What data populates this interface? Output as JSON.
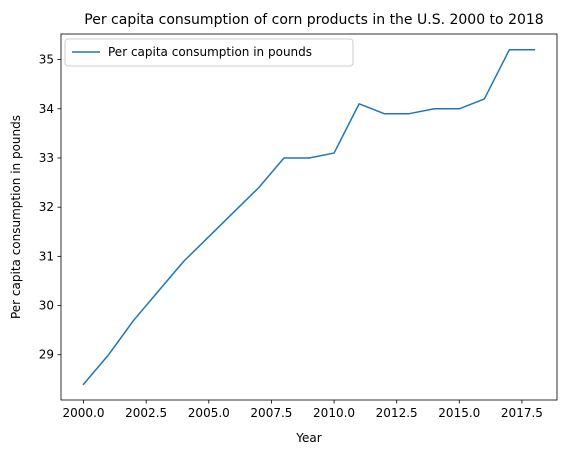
{
  "chart_data": {
    "type": "line",
    "title": "Per capita consumption of corn products in the U.S. 2000 to 2018",
    "xlabel": "Year",
    "ylabel": "Per capita consumption in pounds",
    "xlim": [
      1999.1,
      2018.9
    ],
    "ylim": [
      28.08,
      35.52
    ],
    "xticks": [
      2000.0,
      2002.5,
      2005.0,
      2007.5,
      2010.0,
      2012.5,
      2015.0,
      2017.5
    ],
    "xtick_labels": [
      "2000.0",
      "2002.5",
      "2005.0",
      "2007.5",
      "2010.0",
      "2012.5",
      "2015.0",
      "2017.5"
    ],
    "yticks": [
      29,
      30,
      31,
      32,
      33,
      34,
      35
    ],
    "ytick_labels": [
      "29",
      "30",
      "31",
      "32",
      "33",
      "34",
      "35"
    ],
    "grid": false,
    "legend_position": "top-left",
    "series": [
      {
        "name": "Per capita consumption in pounds",
        "color": "#1f77b4",
        "x": [
          2000,
          2001,
          2002,
          2003,
          2004,
          2005,
          2006,
          2007,
          2008,
          2009,
          2010,
          2011,
          2012,
          2013,
          2014,
          2015,
          2016,
          2017,
          2018
        ],
        "y": [
          28.4,
          29.0,
          29.7,
          30.3,
          30.9,
          31.4,
          31.9,
          32.4,
          33.0,
          33.0,
          33.1,
          34.1,
          33.9,
          33.9,
          34.0,
          34.0,
          34.2,
          35.2,
          35.2
        ]
      }
    ]
  }
}
